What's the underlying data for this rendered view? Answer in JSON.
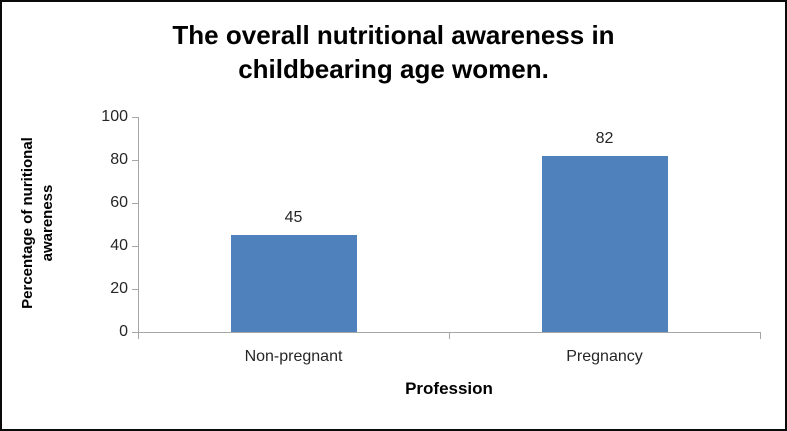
{
  "chart_data": {
    "type": "bar",
    "title": "The overall nutritional awareness in childbearing age women.",
    "title_lines": [
      "The overall nutritional awareness in",
      "childbearing age women."
    ],
    "categories": [
      "Non-pregnant",
      "Pregnancy"
    ],
    "values": [
      45,
      82
    ],
    "xlabel": "Profession",
    "ylabel": "Percentage of nuritional awareness",
    "ylabel_lines": [
      "Percentage of  nuritional",
      "awareness"
    ],
    "yticks": [
      100,
      80,
      60,
      40,
      20,
      0
    ],
    "ylim": [
      0,
      100
    ],
    "grid": false,
    "legend": "none",
    "data_labels_shown": true,
    "bar_color": "#4F81BD",
    "axis_color": "#A6A6A6",
    "text_color": "#262626",
    "frame_border_color": "#0A0A0A",
    "background_color": "#FFFFFF"
  }
}
